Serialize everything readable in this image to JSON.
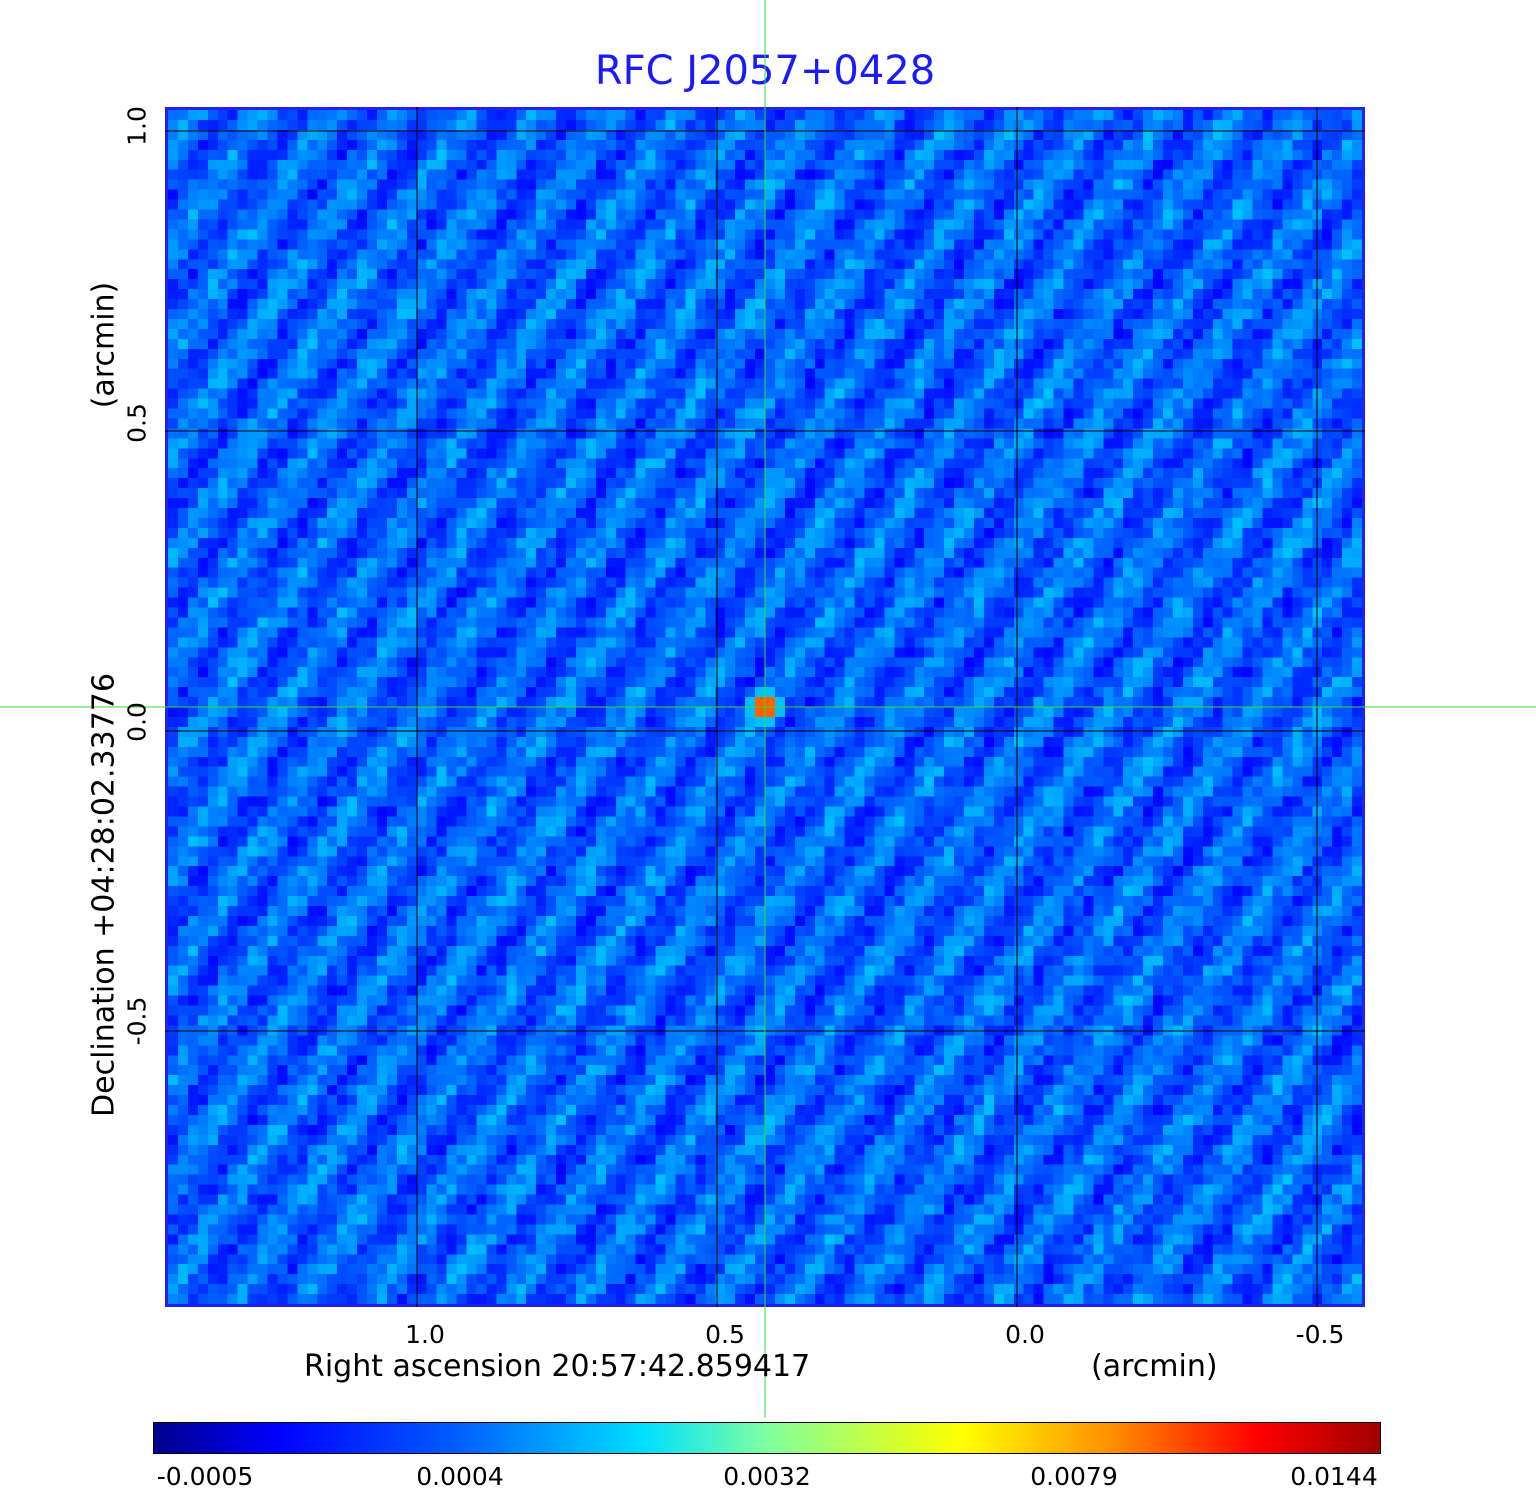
{
  "chart_data": {
    "type": "heatmap",
    "title": "RFC J2057+0428",
    "xlabel": "Right ascension  20:57:42.859417",
    "x_unit": "(arcmin)",
    "ylabel": "Declination  +04:28:02.33776",
    "y_unit": "(arcmin)",
    "x_ticks": [
      "1.0",
      "0.5",
      "0.0",
      "-0.5"
    ],
    "y_ticks": [
      "1.0",
      "0.5",
      "0.0",
      "-0.5"
    ],
    "xlim": [
      1.42,
      -0.58
    ],
    "ylim": [
      -0.96,
      1.04
    ],
    "grid": true,
    "source": {
      "x": 0.42,
      "y": 0.04,
      "peak": 0.0144
    },
    "colorbar": {
      "ticks": [
        "-0.0005",
        "0.0004",
        "0.0032",
        "0.0079",
        "0.0144"
      ],
      "colormap": "jet"
    },
    "crosshair_color": "#33dd33"
  }
}
